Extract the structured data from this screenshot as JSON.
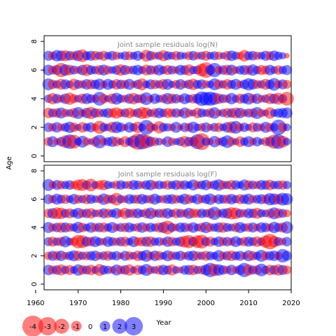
{
  "chart_data": [
    {
      "type": "scatter",
      "title": "Joint sample residuals log(N)",
      "ylabel": "Age",
      "xlim": [
        1962,
        2020
      ],
      "ylim": [
        -0.4,
        8.4
      ],
      "y_ticks": [
        0,
        2,
        4,
        6,
        8
      ],
      "ages": [
        1,
        2,
        3,
        4,
        5,
        6,
        7
      ],
      "years": [
        1963,
        1964,
        1965,
        1966,
        1967,
        1968,
        1969,
        1970,
        1971,
        1972,
        1973,
        1974,
        1975,
        1976,
        1977,
        1978,
        1979,
        1980,
        1981,
        1982,
        1983,
        1984,
        1985,
        1986,
        1987,
        1988,
        1989,
        1990,
        1991,
        1992,
        1993,
        1994,
        1995,
        1996,
        1997,
        1998,
        1999,
        2000,
        2001,
        2002,
        2003,
        2004,
        2005,
        2006,
        2007,
        2008,
        2009,
        2010,
        2011,
        2012,
        2013,
        2014,
        2015,
        2016,
        2017,
        2018,
        2019
      ],
      "residuals": [
        [
          -0.8,
          1.2,
          -0.5,
          0.9,
          -1.6,
          2.1,
          -1.9,
          0.6,
          1.4,
          -0.7,
          0.4,
          -1.0,
          1.8,
          -0.6,
          0.8,
          1.1,
          -0.9,
          0.5,
          -1.2,
          0.7,
          1.5,
          -2.6,
          2.4,
          -1.8,
          1.0,
          -0.8,
          0.6,
          -0.4,
          1.1,
          -0.7,
          0.5,
          0.8,
          -1.3,
          0.9,
          -1.0,
          2.2,
          -2.8,
          0.7,
          -0.5,
          1.3,
          -0.6,
          0.9,
          1.6,
          -0.8,
          0.5,
          -1.1,
          0.7,
          1.2,
          -0.6,
          0.9,
          0.4,
          -0.8,
          1.0,
          -2.0,
          2.1,
          -1.4,
          0.6
        ],
        [
          0.9,
          -0.7,
          1.1,
          -0.6,
          0.8,
          1.3,
          -0.9,
          0.5,
          -1.1,
          0.7,
          1.0,
          -0.6,
          -1.7,
          0.8,
          0.6,
          -1.2,
          1.4,
          0.9,
          -0.5,
          1.1,
          0.7,
          -1.3,
          0.6,
          2.2,
          -0.9,
          0.5,
          -1.5,
          0.8,
          0.7,
          -0.6,
          1.2,
          -0.4,
          0.9,
          -0.8,
          1.3,
          0.6,
          -0.7,
          1.0,
          -0.5,
          0.8,
          -0.9,
          0.6,
          1.1,
          -1.4,
          1.6,
          -0.7,
          0.9,
          0.5,
          -1.0,
          0.8,
          -0.6,
          1.2,
          -0.8,
          0.7,
          2.4,
          -0.9,
          0.6
        ],
        [
          -1.1,
          0.8,
          -0.9,
          1.2,
          -0.7,
          0.6,
          -1.0,
          1.4,
          -0.6,
          1.1,
          -1.5,
          0.9,
          -0.8,
          0.7,
          1.0,
          -0.9,
          -1.3,
          -0.7,
          0.8,
          -1.1,
          -0.6,
          0.9,
          -1.4,
          -1.2,
          0.6,
          -0.9,
          1.1,
          0.7,
          -1.0,
          -0.8,
          0.9,
          -0.6,
          1.2,
          -0.7,
          0.5,
          -1.1,
          0.8,
          0.6,
          -0.9,
          1.3,
          -0.5,
          0.7,
          -1.0,
          0.9,
          -1.2,
          1.1,
          -0.6,
          0.8,
          -0.9,
          1.4,
          -0.7,
          0.5,
          -1.3,
          0.6,
          0.9,
          1.0,
          1.2
        ],
        [
          0.7,
          -1.3,
          0.9,
          -0.6,
          1.1,
          -1.5,
          -0.8,
          0.6,
          -1.0,
          1.2,
          0.8,
          -0.7,
          1.9,
          -0.9,
          0.5,
          -1.1,
          1.4,
          0.7,
          -0.6,
          1.0,
          -1.3,
          0.8,
          -0.9,
          1.6,
          -0.5,
          1.1,
          0.6,
          -0.8,
          1.3,
          -1.0,
          0.9,
          -0.6,
          1.2,
          0.7,
          -0.9,
          1.0,
          2.1,
          1.8,
          2.0,
          1.5,
          -1.1,
          0.8,
          -0.7,
          1.3,
          0.6,
          -1.0,
          0.9,
          1.4,
          -0.8,
          1.1,
          -0.6,
          0.7,
          -1.2,
          1.0,
          -1.4,
          0.8,
          -1.9
        ],
        [
          1.4,
          -0.9,
          0.7,
          -1.2,
          1.0,
          0.6,
          -1.3,
          0.8,
          -0.7,
          1.1,
          -1.0,
          0.9,
          1.3,
          -0.6,
          1.2,
          0.7,
          -1.1,
          0.9,
          -0.8,
          1.2,
          -0.5,
          0.9,
          -1.4,
          0.6,
          1.0,
          -0.9,
          0.7,
          -1.1,
          1.2,
          0.5,
          -0.8,
          1.1,
          -0.6,
          0.9,
          -1.3,
          0.8,
          1.0,
          -0.7,
          0.6,
          1.4,
          -0.9,
          0.7,
          -1.1,
          0.8,
          1.2,
          -0.6,
          0.9,
          1.5,
          1.1,
          -0.8,
          0.7,
          -1.2,
          0.9,
          1.6,
          -0.7,
          1.0,
          -0.8
        ],
        [
          1.2,
          -0.8,
          1.0,
          -2.0,
          1.3,
          -1.1,
          0.8,
          -0.6,
          1.1,
          -1.4,
          0.9,
          0.7,
          -1.0,
          1.2,
          -0.8,
          0.6,
          0.9,
          -1.3,
          1.0,
          -0.7,
          0.8,
          1.1,
          0.6,
          -1.2,
          0.9,
          -0.8,
          1.2,
          0.7,
          -1.0,
          0.8,
          -0.6,
          1.1,
          0.9,
          -1.3,
          0.7,
          0.8,
          -1.6,
          -2.4,
          1.0,
          2.0,
          -0.7,
          0.9,
          -1.1,
          1.2,
          -0.6,
          0.8,
          1.0,
          -0.9,
          1.3,
          0.7,
          -1.0,
          -0.8,
          1.1,
          0.6,
          -0.9,
          0.7,
          1.0
        ],
        [
          1.0,
          -0.7,
          1.3,
          1.1,
          -1.2,
          0.9,
          -0.8,
          1.2,
          -1.6,
          0.8,
          1.0,
          -0.9,
          0.7,
          -1.0,
          0.6,
          0.9,
          -0.7,
          0.5,
          0.8,
          -0.8,
          0.6,
          1.0,
          0.4,
          -1.4,
          0.9,
          -0.6,
          0.7,
          -1.2,
          0.8,
          0.6,
          -0.9,
          0.7,
          0.5,
          -0.8,
          0.9,
          -0.6,
          0.7,
          -1.0,
          0.6,
          0.8,
          -0.7,
          0.5,
          -0.9,
          1.1,
          0.7,
          -0.6,
          -1.3,
          0.8,
          0.9,
          -0.7,
          0.6,
          1.0,
          -0.8,
          1.1,
          0.7,
          0.5,
          -0.3
        ]
      ]
    },
    {
      "type": "scatter",
      "title": "Joint sample residuals log(F)",
      "xlabel": "Year",
      "ylabel": "Age",
      "xlim": [
        1962,
        2020
      ],
      "ylim": [
        -0.4,
        8.4
      ],
      "x_ticks": [
        1960,
        1970,
        1980,
        1990,
        2000,
        2010,
        2020
      ],
      "y_ticks": [
        0,
        2,
        4,
        6,
        8
      ],
      "ages": [
        1,
        2,
        3,
        4,
        5,
        6,
        7
      ],
      "years": [
        1963,
        1964,
        1965,
        1966,
        1967,
        1968,
        1969,
        1970,
        1971,
        1972,
        1973,
        1974,
        1975,
        1976,
        1977,
        1978,
        1979,
        1980,
        1981,
        1982,
        1983,
        1984,
        1985,
        1986,
        1987,
        1988,
        1989,
        1990,
        1991,
        1992,
        1993,
        1994,
        1995,
        1996,
        1997,
        1998,
        1999,
        2000,
        2001,
        2002,
        2003,
        2004,
        2005,
        2006,
        2007,
        2008,
        2009,
        2010,
        2011,
        2012,
        2013,
        2014,
        2015,
        2016,
        2017,
        2018,
        2019
      ],
      "residuals": [
        [
          1.1,
          -0.8,
          0.9,
          -1.2,
          0.7,
          -1.0,
          0.6,
          1.3,
          -0.9,
          0.8,
          -1.1,
          0.6,
          -1.4,
          0.9,
          0.7,
          -0.6,
          1.2,
          -0.8,
          0.9,
          -1.3,
          0.5,
          -1.0,
          0.8,
          1.4,
          -0.7,
          0.6,
          -0.9,
          1.1,
          0.8,
          -1.2,
          0.6,
          -0.5,
          0.9,
          1.0,
          -1.1,
          0.7,
          -0.8,
          1.2,
          2.0,
          -1.5,
          1.3,
          0.9,
          -0.7,
          1.1,
          -0.6,
          1.0,
          2.0,
          -1.2,
          0.8,
          -0.9,
          1.6,
          0.7,
          -1.1,
          0.9,
          -1.3,
          1.0,
          -0.8
        ],
        [
          -0.7,
          1.0,
          -0.9,
          1.1,
          -0.6,
          0.8,
          1.2,
          -1.0,
          0.7,
          -0.8,
          0.9,
          1.1,
          -0.6,
          0.8,
          -1.0,
          0.7,
          0.9,
          -0.5,
          1.0,
          -0.8,
          0.6,
          -1.1,
          0.9,
          1.4,
          -0.7,
          1.1,
          -0.9,
          0.6,
          1.2,
          -0.8,
          0.7,
          1.0,
          -0.6,
          0.9,
          1.1,
          -0.8,
          0.7,
          -1.0,
          0.8,
          0.6,
          1.3,
          -0.7,
          0.9,
          -1.1,
          0.8,
          1.0,
          -0.6,
          1.2,
          -0.9,
          0.7,
          1.4,
          -0.8,
          0.9,
          1.1,
          -0.7,
          1.8,
          1.0
        ],
        [
          0.8,
          -1.0,
          0.7,
          -0.9,
          1.3,
          0.6,
          -0.8,
          -1.8,
          -1.6,
          1.0,
          -0.9,
          1.2,
          0.7,
          -0.6,
          1.1,
          0.8,
          -0.7,
          0.9,
          -1.0,
          0.6,
          1.2,
          -0.8,
          -0.9,
          1.0,
          -1.1,
          0.7,
          0.8,
          -0.6,
          1.1,
          -0.9,
          0.7,
          1.0,
          -1.4,
          -1.7,
          0.9,
          -1.6,
          -1.9,
          0.8,
          -1.0,
          0.6,
          1.1,
          -0.8,
          0.9,
          -0.7,
          1.2,
          0.6,
          -0.9,
          1.0,
          0.8,
          -1.1,
          0.7,
          -1.5,
          -2.4,
          -1.3,
          0.8,
          -0.6,
          0.9
        ],
        [
          1.2,
          -0.7,
          0.9,
          -1.1,
          1.0,
          -0.8,
          0.7,
          1.3,
          -0.9,
          0.6,
          1.1,
          -0.8,
          0.9,
          -1.0,
          0.7,
          1.2,
          -0.6,
          0.8,
          -0.9,
          1.0,
          0.6,
          -0.8,
          1.1,
          -0.7,
          0.9,
          0.7,
          -1.0,
          1.2,
          -1.9,
          0.8,
          -0.6,
          1.0,
          0.9,
          -0.7,
          1.1,
          0.6,
          -0.9,
          1.3,
          -0.8,
          0.7,
          1.0,
          -1.1,
          0.8,
          0.6,
          -0.9,
          1.2,
          0.7,
          -0.8,
          1.0,
          -0.6,
          1.1,
          0.9,
          -0.7,
          1.3,
          0.8,
          -1.0,
          1.5
        ],
        [
          -0.9,
          1.1,
          -1.4,
          -1.3,
          0.8,
          -1.0,
          0.7,
          1.2,
          -0.8,
          0.9,
          -1.1,
          0.6,
          -0.7,
          1.0,
          -0.9,
          0.7,
          1.1,
          -0.6,
          -1.2,
          0.8,
          -0.9,
          1.0,
          0.6,
          -1.0,
          1.3,
          -0.7,
          0.8,
          -0.9,
          1.1,
          0.6,
          -1.0,
          0.8,
          -0.7,
          1.2,
          -0.9,
          -0.8,
          0.9,
          0.7,
          -1.0,
          1.7,
          -0.6,
          0.9,
          1.1,
          -1.5,
          -1.3,
          0.8,
          -0.7,
          1.0,
          0.9,
          -1.2,
          0.7,
          0.6,
          -0.9,
          1.4,
          -1.0,
          0.8,
          -0.6
        ],
        [
          1.0,
          -0.7,
          1.2,
          0.8,
          -0.9,
          0.6,
          1.1,
          -0.8,
          0.7,
          -1.0,
          0.9,
          0.6,
          -0.7,
          1.3,
          -0.9,
          0.8,
          -1.6,
          0.7,
          -0.6,
          1.0,
          0.8,
          -0.9,
          1.1,
          0.7,
          -0.8,
          1.2,
          0.6,
          -0.7,
          0.9,
          1.0,
          -0.8,
          0.7,
          1.2,
          -0.9,
          0.6,
          1.1,
          -0.7,
          0.9,
          1.3,
          -0.6,
          1.0,
          0.8,
          -0.9,
          1.1,
          0.7,
          -1.0,
          0.9,
          1.2,
          -0.7,
          0.8,
          1.0,
          -0.9,
          1.5,
          1.3,
          -1.1,
          1.6,
          1.4
        ],
        [
          1.4,
          -0.6,
          1.0,
          -0.8,
          0.7,
          0.9,
          -0.7,
          -1.2,
          -1.4,
          0.8,
          -1.6,
          0.6,
          -0.9,
          -1.1,
          0.7,
          0.5,
          -0.8,
          0.9,
          0.6,
          -0.7,
          1.0,
          0.8,
          -0.6,
          0.9,
          1.1,
          -0.7,
          0.8,
          0.6,
          -0.9,
          0.7,
          1.0,
          -0.8,
          0.9,
          0.6,
          1.2,
          -0.7,
          0.8,
          1.1,
          -0.6,
          0.9,
          1.3,
          -0.8,
          0.7,
          -1.0,
          0.9,
          0.6,
          1.2,
          -0.9,
          0.8,
          -0.7,
          1.0,
          0.9,
          -1.1,
          0.7,
          0.8,
          -0.9,
          0.7
        ]
      ]
    }
  ],
  "legend": {
    "items": [
      {
        "label": "-4",
        "value": -4
      },
      {
        "label": "-3",
        "value": -3
      },
      {
        "label": "-2",
        "value": -2
      },
      {
        "label": "-1",
        "value": -1
      },
      {
        "label": "0",
        "value": 0
      },
      {
        "label": "1",
        "value": 1
      },
      {
        "label": "2",
        "value": 2
      },
      {
        "label": "3",
        "value": 3
      }
    ]
  },
  "colors": {
    "negative": "#ff0000",
    "positive": "#0000ff",
    "title_text": "#888888",
    "axis": "#000000"
  }
}
